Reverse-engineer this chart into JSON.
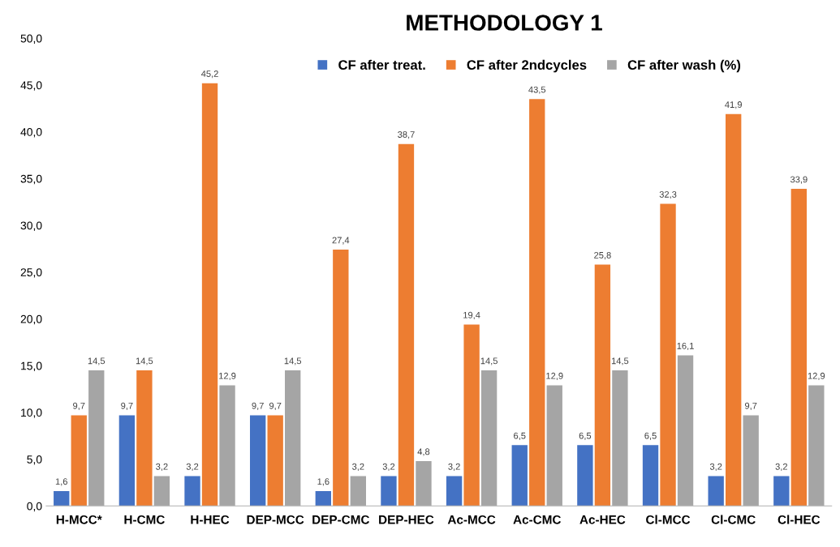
{
  "chart_data": {
    "type": "bar",
    "title": "METHODOLOGY 1",
    "categories": [
      "H-MCC*",
      "H-CMC",
      "H-HEC",
      "DEP-MCC",
      "DEP-CMC",
      "DEP-HEC",
      "Ac-MCC",
      "Ac-CMC",
      "Ac-HEC",
      "Cl-MCC",
      "Cl-CMC",
      "Cl-HEC"
    ],
    "series": [
      {
        "name": "CF after treat.",
        "color": "#4472c4",
        "values": [
          1.6,
          9.7,
          3.2,
          9.7,
          1.6,
          3.2,
          3.2,
          6.5,
          6.5,
          6.5,
          3.2,
          3.2
        ],
        "value_labels": [
          "1,6",
          "9,7",
          "3,2",
          "9,7",
          "1,6",
          "3,2",
          "3,2",
          "6,5",
          "6,5",
          "6,5",
          "3,2",
          "3,2"
        ]
      },
      {
        "name": "CF after 2ndcycles",
        "color": "#ed7d31",
        "values": [
          9.7,
          14.5,
          45.2,
          9.7,
          27.4,
          38.7,
          19.4,
          43.5,
          25.8,
          32.3,
          41.9,
          33.9
        ],
        "value_labels": [
          "9,7",
          "14,5",
          "45,2",
          "9,7",
          "27,4",
          "38,7",
          "19,4",
          "43,5",
          "25,8",
          "32,3",
          "41,9",
          "33,9"
        ]
      },
      {
        "name": "CF after wash (%)",
        "color": "#a5a5a5",
        "values": [
          14.5,
          3.2,
          12.9,
          14.5,
          3.2,
          4.8,
          14.5,
          12.9,
          14.5,
          16.1,
          9.7,
          12.9
        ],
        "value_labels": [
          "14,5",
          "3,2",
          "12,9",
          "14,5",
          "3,2",
          "4,8",
          "14,5",
          "12,9",
          "14,5",
          "16,1",
          "9,7",
          "12,9"
        ]
      }
    ],
    "ylim": [
      0,
      50
    ],
    "yticks": [
      {
        "value": 0,
        "label": "0,0"
      },
      {
        "value": 5,
        "label": "5,0"
      },
      {
        "value": 10,
        "label": "10,0"
      },
      {
        "value": 15,
        "label": "15,0"
      },
      {
        "value": 20,
        "label": "20,0"
      },
      {
        "value": 25,
        "label": "25,0"
      },
      {
        "value": 30,
        "label": "30,0"
      },
      {
        "value": 35,
        "label": "35,0"
      },
      {
        "value": 40,
        "label": "40,0"
      },
      {
        "value": 45,
        "label": "45,0"
      },
      {
        "value": 50,
        "label": "50,0"
      }
    ],
    "grid": false,
    "legend": "top right"
  }
}
